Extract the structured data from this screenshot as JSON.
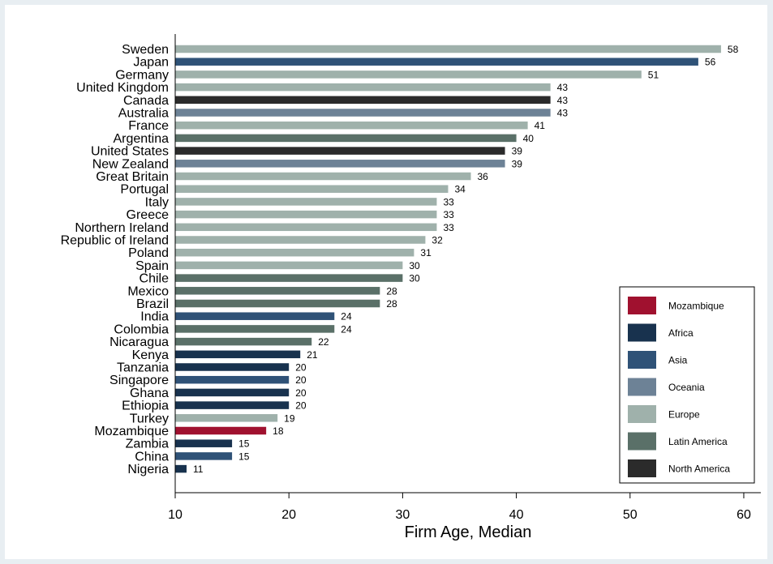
{
  "chart_data": {
    "type": "bar",
    "orientation": "horizontal",
    "xlabel": "Firm Age, Median",
    "xlim": [
      10,
      61.5
    ],
    "xticks": [
      10,
      20,
      30,
      40,
      50,
      60
    ],
    "grid": false,
    "legend_position": "bottom-right",
    "categories": [
      "Sweden",
      "Japan",
      "Germany",
      "United Kingdom",
      "Canada",
      "Australia",
      "France",
      "Argentina",
      "United States",
      "New Zealand",
      "Great Britain",
      "Portugal",
      "Italy",
      "Greece",
      "Northern Ireland",
      "Republic of Ireland",
      "Poland",
      "Spain",
      "Chile",
      "Mexico",
      "Brazil",
      "India",
      "Colombia",
      "Nicaragua",
      "Kenya",
      "Tanzania",
      "Singapore",
      "Ghana",
      "Ethiopia",
      "Turkey",
      "Mozambique",
      "Zambia",
      "China",
      "Nigeria"
    ],
    "values": [
      58,
      56,
      51,
      43,
      43,
      43,
      41,
      40,
      39,
      39,
      36,
      34,
      33,
      33,
      33,
      32,
      31,
      30,
      30,
      28,
      28,
      24,
      24,
      22,
      21,
      20,
      20,
      20,
      20,
      19,
      18,
      15,
      15,
      11
    ],
    "value_labels": [
      "58",
      "56",
      "51",
      "43",
      "43",
      "43",
      "41",
      "40",
      "39",
      "39",
      "36",
      "34",
      "33",
      "33",
      "33",
      "32",
      "31",
      "30",
      "30",
      "28",
      "28",
      "24",
      "24",
      "22",
      "21",
      "20",
      "20",
      "20",
      "20",
      "19",
      "18",
      "15",
      "15",
      "11"
    ],
    "groups": [
      "Europe",
      "Asia",
      "Europe",
      "Europe",
      "North America",
      "Oceania",
      "Europe",
      "Latin America",
      "North America",
      "Oceania",
      "Europe",
      "Europe",
      "Europe",
      "Europe",
      "Europe",
      "Europe",
      "Europe",
      "Europe",
      "Latin America",
      "Latin America",
      "Latin America",
      "Asia",
      "Latin America",
      "Latin America",
      "Africa",
      "Africa",
      "Asia",
      "Africa",
      "Africa",
      "Europe",
      "Mozambique",
      "Africa",
      "Asia",
      "Africa"
    ],
    "legend": [
      {
        "name": "Mozambique",
        "color": "#a0112f"
      },
      {
        "name": "Africa",
        "color": "#18324e"
      },
      {
        "name": "Asia",
        "color": "#2f5277"
      },
      {
        "name": "Oceania",
        "color": "#6d8296"
      },
      {
        "name": "Europe",
        "color": "#9fb1ab"
      },
      {
        "name": "Latin America",
        "color": "#5a7068"
      },
      {
        "name": "North America",
        "color": "#2b2b2b"
      }
    ]
  }
}
